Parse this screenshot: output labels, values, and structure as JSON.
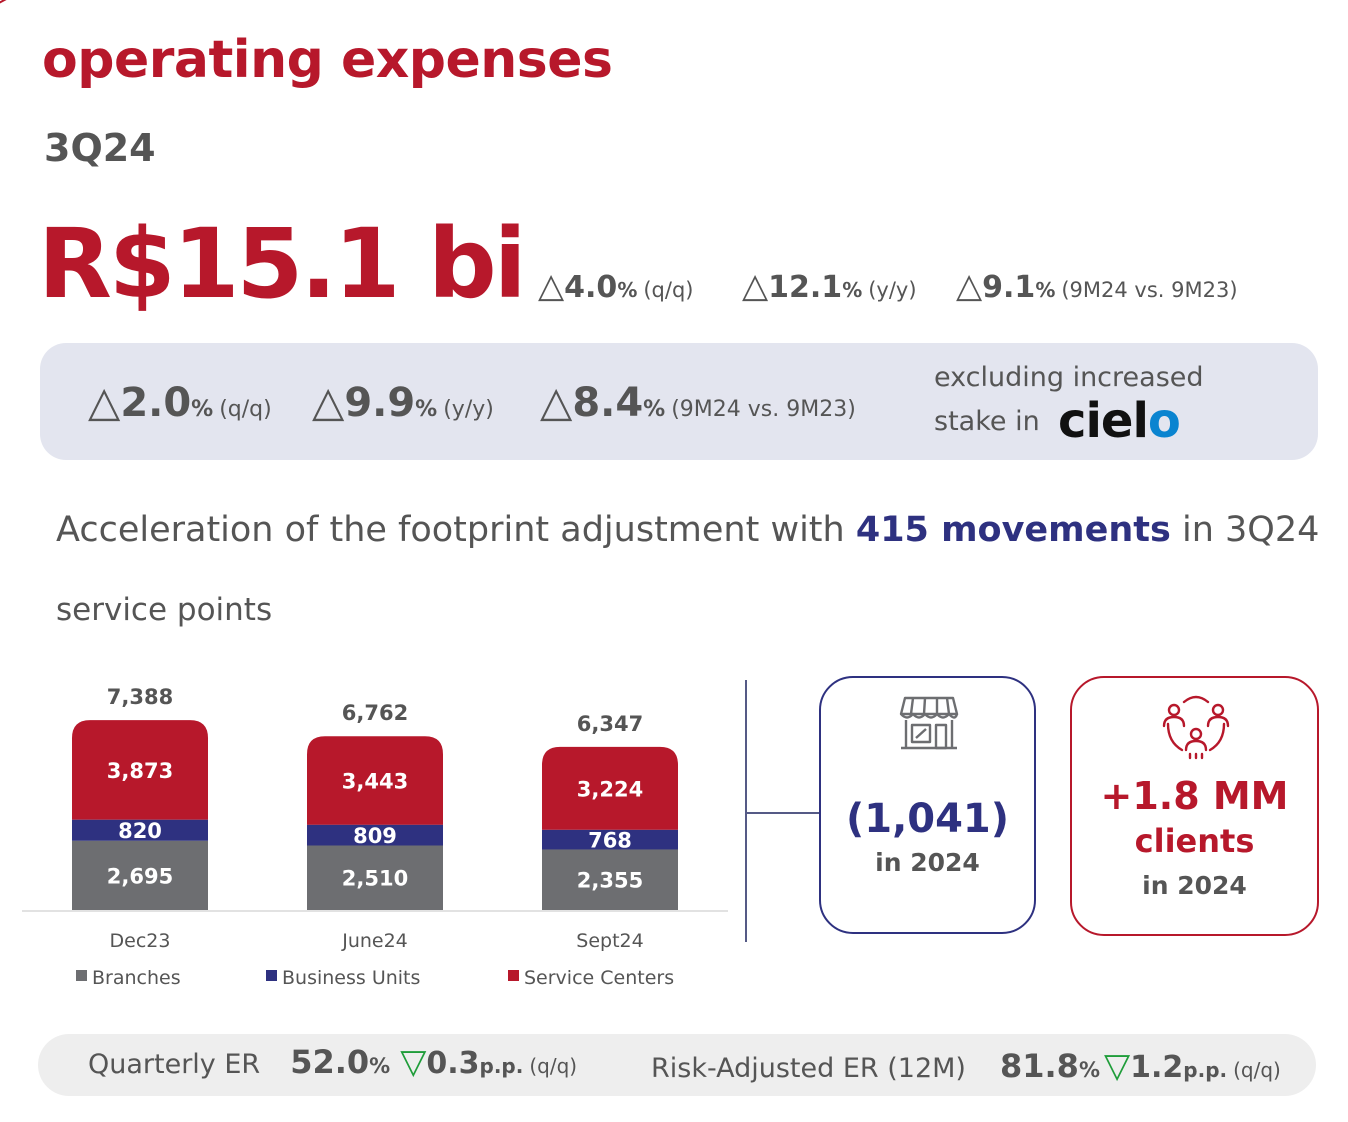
{
  "header": {
    "title": "operating expenses",
    "period": "3Q24",
    "total": "R$15.1 bi"
  },
  "top_metrics": [
    {
      "symbol": "△",
      "value": "4.0",
      "unit": "%",
      "period": "(q/q)"
    },
    {
      "symbol": "△",
      "value": "12.1",
      "unit": "%",
      "period": "(y/y)"
    },
    {
      "symbol": "△",
      "value": "9.1",
      "unit": "%",
      "period": "(9M24 vs. 9M23)"
    }
  ],
  "excluding_panel": {
    "metrics": [
      {
        "symbol": "△",
        "value": "2.0",
        "unit": "%",
        "period": "(q/q)"
      },
      {
        "symbol": "△",
        "value": "9.9",
        "unit": "%",
        "period": "(y/y)"
      },
      {
        "symbol": "△",
        "value": "8.4",
        "unit": "%",
        "period": "(9M24 vs. 9M23)"
      }
    ],
    "note_line1": "excluding increased",
    "note_line2": "stake in",
    "logo_text": "ciel",
    "logo_text_end": "o"
  },
  "headline": {
    "prefix": "Acceleration of the footprint adjustment with ",
    "highlight": "415 movements",
    "suffix": " in 3Q24"
  },
  "section_label": "service points",
  "chart_data": {
    "type": "bar",
    "stacked": true,
    "categories": [
      "Dec23",
      "June24",
      "Sept24"
    ],
    "series": [
      {
        "name": "Branches",
        "values": [
          2695,
          2510,
          2355
        ],
        "labels": [
          "2,695",
          "2,510",
          "2,355"
        ],
        "color": "#6d6e71"
      },
      {
        "name": "Business Units",
        "values": [
          820,
          809,
          768
        ],
        "labels": [
          "820",
          "809",
          "768"
        ],
        "color": "#2e3180"
      },
      {
        "name": "Service Centers",
        "values": [
          3873,
          3443,
          3224
        ],
        "labels": [
          "3,873",
          "3,443",
          "3,224"
        ],
        "color": "#b7182b"
      }
    ],
    "totals": [
      7388,
      6762,
      6347
    ],
    "total_labels": [
      "7,388",
      "6,762",
      "6,347"
    ],
    "legend_position": "bottom",
    "grid": false
  },
  "cards": {
    "branches_change": {
      "icon": "storefront-icon",
      "value": "(1,041)",
      "sub": "in 2024"
    },
    "clients_change": {
      "icon": "people-network-icon",
      "value": "+1.8 MM",
      "value2": "clients",
      "sub": "in 2024"
    }
  },
  "er_bar": {
    "quarterly": {
      "label": "Quarterly ER",
      "value": "52.0",
      "unit": "%",
      "symbol": "▽",
      "delta": "0.3",
      "delta_unit": "p.p.",
      "period": "(q/q)"
    },
    "risk_adjusted": {
      "label": "Risk-Adjusted ER (12M)",
      "value": "81.8",
      "unit": "%",
      "symbol": "▽",
      "delta": "1.2",
      "delta_unit": "p.p.",
      "period": "(q/q)"
    }
  },
  "colors": {
    "brand_red": "#b7182b",
    "brand_navy": "#2e3180",
    "gray": "#6d6e71",
    "down_green": "#1f9d3a"
  }
}
